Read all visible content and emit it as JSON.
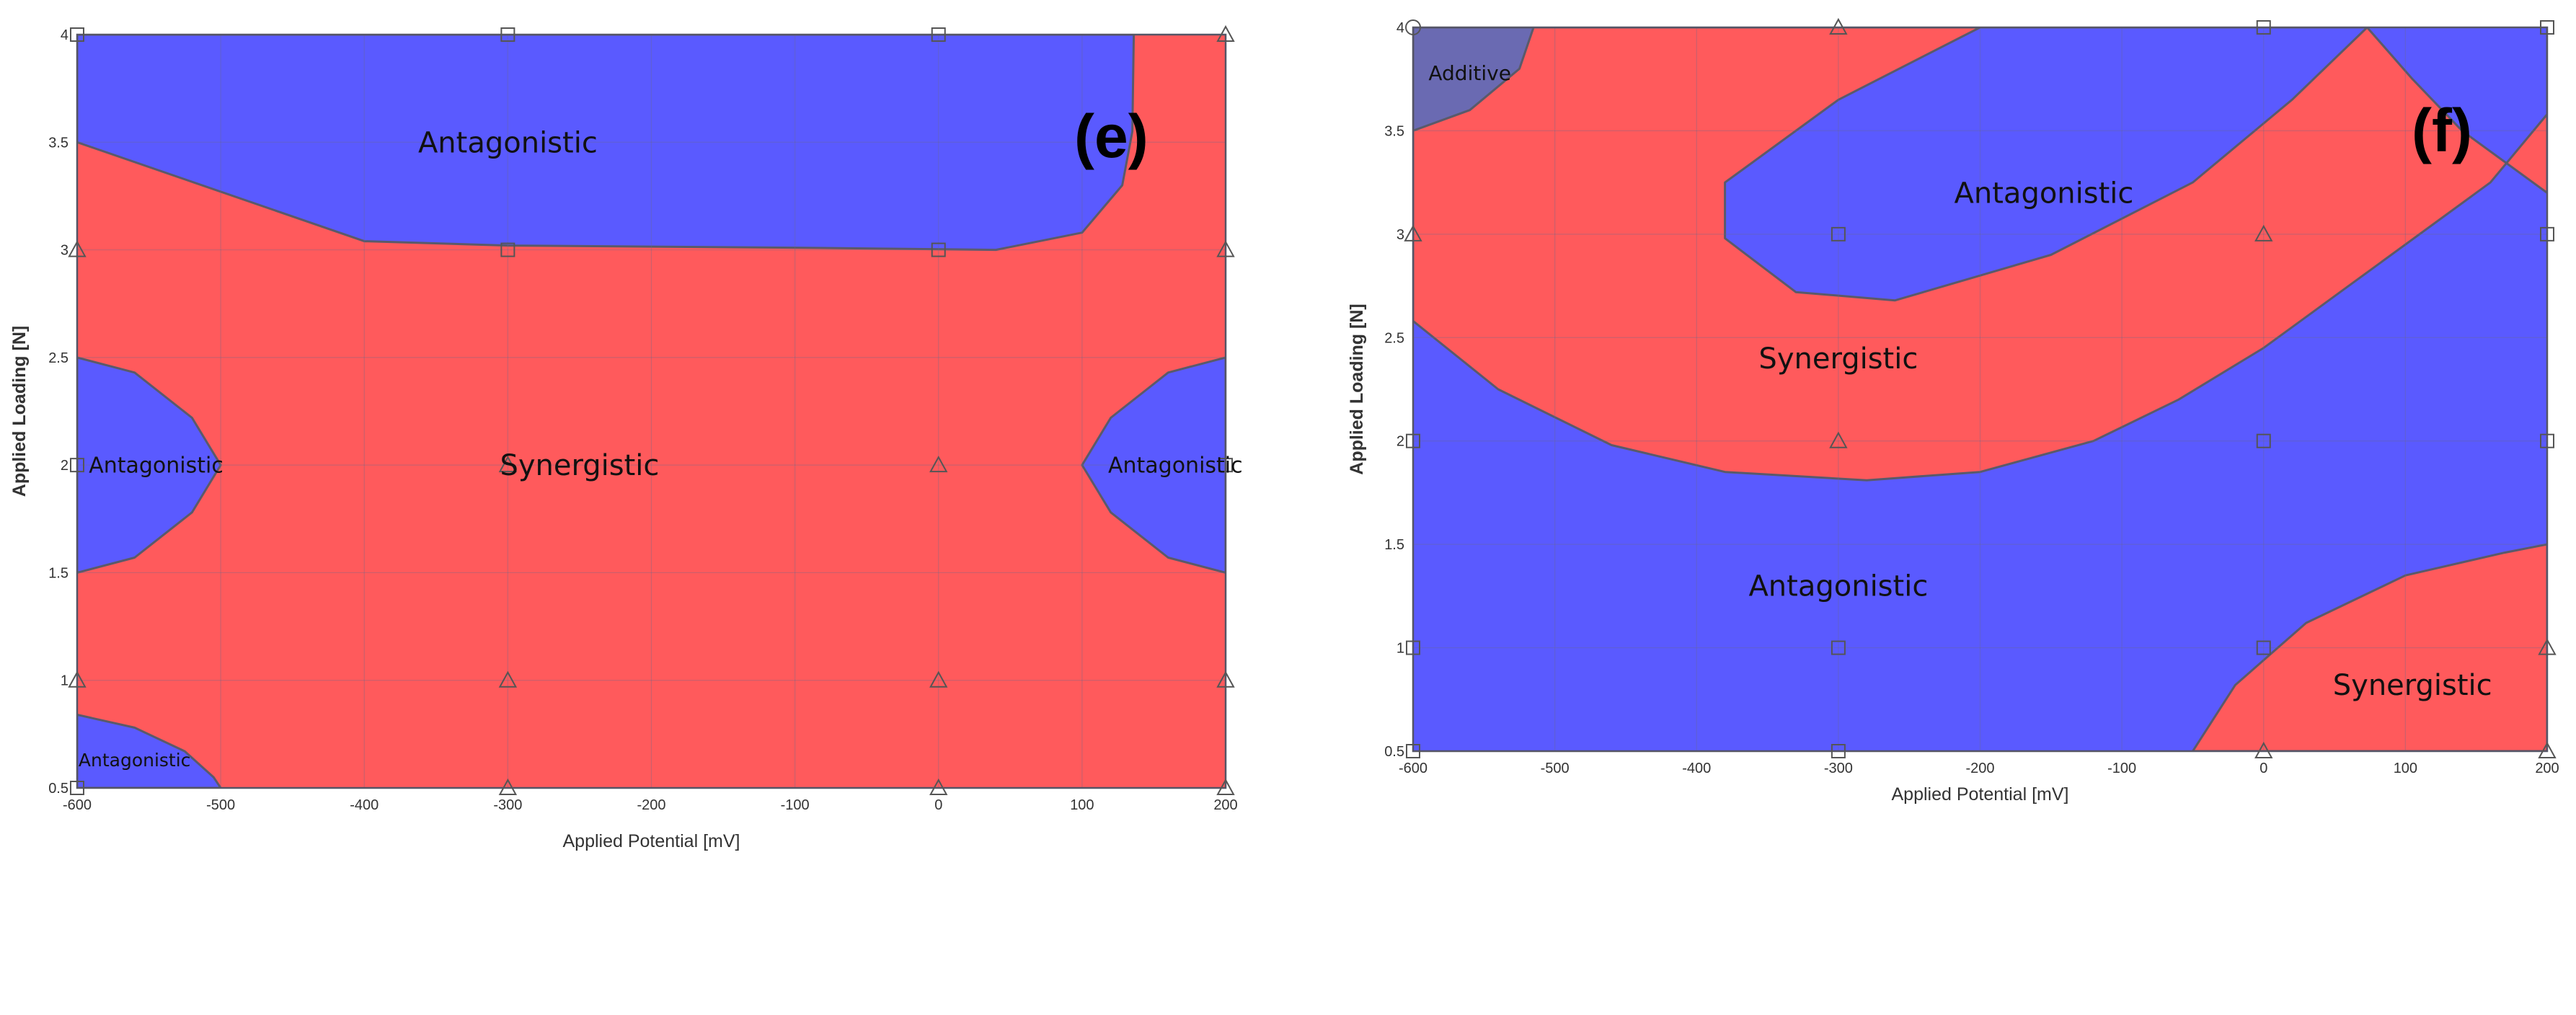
{
  "colors": {
    "synergistic": "#ff5a5c",
    "antagonistic": "#5a5aff",
    "additive": "#6a6ab2",
    "boundary": "#5a5a6a",
    "grid": "#6a6a8a"
  },
  "chart_data": [
    {
      "type": "contour",
      "panel_label": "(e)",
      "xlabel": "Applied Potential [mV]",
      "ylabel": "Applied Loading [N]",
      "xlim": [
        -600,
        200
      ],
      "ylim": [
        0.5,
        4
      ],
      "x_ticks": [
        "-600",
        "-500",
        "-400",
        "-300",
        "-200",
        "-100",
        "0",
        "100",
        "200"
      ],
      "y_ticks": [
        "0.5",
        "1",
        "1.5",
        "2",
        "2.5",
        "3",
        "3.5",
        "4"
      ],
      "base_region": "synergistic",
      "regions": [
        {
          "type": "antagonistic",
          "points": [
            [
              -600,
              4
            ],
            [
              136,
              4
            ],
            [
              135,
              3.55
            ],
            [
              128,
              3.3
            ],
            [
              100,
              3.08
            ],
            [
              40,
              3.0
            ],
            [
              -100,
              3.01
            ],
            [
              -300,
              3.02
            ],
            [
              -400,
              3.04
            ],
            [
              -600,
              3.5
            ]
          ]
        },
        {
          "type": "antagonistic",
          "points": [
            [
              -600,
              2.5
            ],
            [
              -560,
              2.43
            ],
            [
              -520,
              2.22
            ],
            [
              -500,
              2.0
            ],
            [
              -520,
              1.78
            ],
            [
              -560,
              1.57
            ],
            [
              -600,
              1.5
            ]
          ]
        },
        {
          "type": "antagonistic",
          "points": [
            [
              200,
              2.5
            ],
            [
              160,
              2.43
            ],
            [
              120,
              2.22
            ],
            [
              100,
              2.0
            ],
            [
              120,
              1.78
            ],
            [
              160,
              1.57
            ],
            [
              200,
              1.5
            ]
          ]
        },
        {
          "type": "antagonistic",
          "points": [
            [
              -600,
              0.84
            ],
            [
              -560,
              0.78
            ],
            [
              -525,
              0.67
            ],
            [
              -505,
              0.55
            ],
            [
              -500,
              0.5
            ],
            [
              -600,
              0.5
            ]
          ]
        }
      ],
      "labels": [
        {
          "text": "Antagonistic",
          "x": -300,
          "y": 3.5,
          "size": "large"
        },
        {
          "text": "Synergistic",
          "x": -250,
          "y": 2.0,
          "size": "large"
        },
        {
          "text": "Antagonistic",
          "x": -545,
          "y": 2.0,
          "size": "small"
        },
        {
          "text": "Antagonistic",
          "x": 165,
          "y": 2.0,
          "size": "small"
        },
        {
          "text": "Antagonistic",
          "x": -560,
          "y": 0.63,
          "size": "xsmall"
        }
      ],
      "design_points": [
        {
          "x": -600,
          "y": 4,
          "marker": "square"
        },
        {
          "x": -300,
          "y": 4,
          "marker": "square"
        },
        {
          "x": 0,
          "y": 4,
          "marker": "square"
        },
        {
          "x": 200,
          "y": 4,
          "marker": "triangle"
        },
        {
          "x": -600,
          "y": 3,
          "marker": "triangle"
        },
        {
          "x": -300,
          "y": 3,
          "marker": "square"
        },
        {
          "x": 0,
          "y": 3,
          "marker": "square"
        },
        {
          "x": 200,
          "y": 3,
          "marker": "triangle"
        },
        {
          "x": -600,
          "y": 2,
          "marker": "square"
        },
        {
          "x": -300,
          "y": 2,
          "marker": "triangle"
        },
        {
          "x": 0,
          "y": 2,
          "marker": "triangle"
        },
        {
          "x": 200,
          "y": 2,
          "marker": "square"
        },
        {
          "x": -600,
          "y": 1,
          "marker": "triangle"
        },
        {
          "x": -300,
          "y": 1,
          "marker": "triangle"
        },
        {
          "x": 0,
          "y": 1,
          "marker": "triangle"
        },
        {
          "x": 200,
          "y": 1,
          "marker": "triangle"
        },
        {
          "x": -600,
          "y": 0.5,
          "marker": "square"
        },
        {
          "x": -300,
          "y": 0.5,
          "marker": "triangle"
        },
        {
          "x": 0,
          "y": 0.5,
          "marker": "triangle"
        },
        {
          "x": 200,
          "y": 0.5,
          "marker": "triangle"
        }
      ]
    },
    {
      "type": "contour",
      "panel_label": "(f)",
      "xlabel": "Applied Potential [mV]",
      "ylabel": "Applied Loading [N]",
      "xlim": [
        -600,
        200
      ],
      "ylim": [
        0.5,
        4
      ],
      "x_ticks": [
        "-600",
        "-500",
        "-400",
        "-300",
        "-200",
        "-100",
        "0",
        "100",
        "200"
      ],
      "y_ticks": [
        "0.5",
        "1",
        "1.5",
        "2",
        "2.5",
        "3",
        "3.5",
        "4"
      ],
      "base_region": "antagonistic",
      "regions": [
        {
          "type": "synergistic",
          "points": [
            [
              -600,
              4
            ],
            [
              73,
              4
            ],
            [
              105,
              3.75
            ],
            [
              140,
              3.5
            ],
            [
              200,
              3.2
            ],
            [
              200,
              4
            ],
            [
              200,
              3.58
            ],
            [
              160,
              3.25
            ],
            [
              120,
              3.05
            ],
            [
              60,
              2.75
            ],
            [
              0,
              2.45
            ],
            [
              -60,
              2.2
            ],
            [
              -120,
              2.0
            ],
            [
              -200,
              1.85
            ],
            [
              -280,
              1.81
            ],
            [
              -380,
              1.85
            ],
            [
              -460,
              1.98
            ],
            [
              -540,
              2.25
            ],
            [
              -600,
              2.58
            ]
          ]
        },
        {
          "type": "antagonistic",
          "points": [
            [
              -200,
              4
            ],
            [
              -300,
              3.65
            ],
            [
              -380,
              3.25
            ],
            [
              -380,
              2.98
            ],
            [
              -330,
              2.72
            ],
            [
              -260,
              2.68
            ],
            [
              -150,
              2.9
            ],
            [
              -50,
              3.25
            ],
            [
              20,
              3.65
            ],
            [
              73,
              4
            ]
          ]
        },
        {
          "type": "synergistic",
          "points": [
            [
              -50,
              0.5
            ],
            [
              -20,
              0.82
            ],
            [
              30,
              1.12
            ],
            [
              100,
              1.35
            ],
            [
              170,
              1.46
            ],
            [
              200,
              1.5
            ],
            [
              200,
              0.5
            ]
          ]
        },
        {
          "type": "additive",
          "points": [
            [
              -600,
              4
            ],
            [
              -515,
              4
            ],
            [
              -525,
              3.8
            ],
            [
              -560,
              3.6
            ],
            [
              -600,
              3.5
            ]
          ]
        }
      ],
      "labels": [
        {
          "text": "Additive",
          "x": -560,
          "y": 3.78,
          "size": "small"
        },
        {
          "text": "Antagonistic",
          "x": -155,
          "y": 3.2,
          "size": "large"
        },
        {
          "text": "Synergistic",
          "x": -300,
          "y": 2.4,
          "size": "large"
        },
        {
          "text": "Antagonistic",
          "x": -300,
          "y": 1.3,
          "size": "large"
        },
        {
          "text": "Synergistic",
          "x": 105,
          "y": 0.82,
          "size": "large"
        }
      ],
      "design_points": [
        {
          "x": -600,
          "y": 4,
          "marker": "circle"
        },
        {
          "x": -300,
          "y": 4,
          "marker": "triangle"
        },
        {
          "x": 0,
          "y": 4,
          "marker": "square"
        },
        {
          "x": 200,
          "y": 4,
          "marker": "square"
        },
        {
          "x": -600,
          "y": 3,
          "marker": "triangle"
        },
        {
          "x": -300,
          "y": 3,
          "marker": "square"
        },
        {
          "x": 0,
          "y": 3,
          "marker": "triangle"
        },
        {
          "x": 200,
          "y": 3,
          "marker": "square"
        },
        {
          "x": -600,
          "y": 2,
          "marker": "square"
        },
        {
          "x": -300,
          "y": 2,
          "marker": "triangle"
        },
        {
          "x": 0,
          "y": 2,
          "marker": "square"
        },
        {
          "x": 200,
          "y": 2,
          "marker": "square"
        },
        {
          "x": -600,
          "y": 1,
          "marker": "square"
        },
        {
          "x": -300,
          "y": 1,
          "marker": "square"
        },
        {
          "x": 0,
          "y": 1,
          "marker": "square"
        },
        {
          "x": 200,
          "y": 1,
          "marker": "triangle"
        },
        {
          "x": -600,
          "y": 0.5,
          "marker": "square"
        },
        {
          "x": -300,
          "y": 0.5,
          "marker": "square"
        },
        {
          "x": 0,
          "y": 0.5,
          "marker": "triangle"
        },
        {
          "x": 200,
          "y": 0.5,
          "marker": "triangle"
        }
      ]
    }
  ]
}
